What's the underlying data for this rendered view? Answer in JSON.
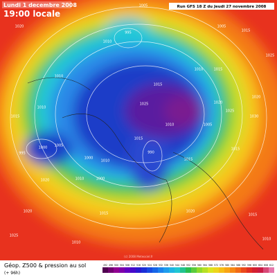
{
  "header": {
    "date": "Lundi 1 decembre 2008",
    "time": "19:00 locale",
    "run": "Run GFS 18 Z du Jeudi 27 novembre 2008"
  },
  "footer": {
    "title": "Géop. Z500 & pression au sol",
    "lead": "(+ 96h)",
    "credit": "(c) 2008 Meteociel.fr"
  },
  "colorbar": {
    "ticks": [
      492,
      496,
      500,
      504,
      508,
      512,
      516,
      520,
      524,
      528,
      532,
      536,
      540,
      544,
      548,
      552,
      556,
      560,
      564,
      568,
      572,
      576,
      580,
      584,
      588,
      592,
      596,
      600,
      604,
      608,
      612
    ]
  },
  "pressure_labels": [
    "1020",
    "1005",
    "1015",
    "1005",
    "995",
    "1010",
    "1025",
    "1010",
    "1015",
    "1010",
    "1010",
    "1015",
    "1025",
    "1020",
    "1025",
    "1030",
    "1015",
    "1000",
    "995",
    "1005",
    "1000",
    "1010",
    "990",
    "1015",
    "1010",
    "1000",
    "1020",
    "1015",
    "1020",
    "1025",
    "1015",
    "1010",
    "1010",
    "1015",
    "1005",
    "1015",
    "1020",
    "1020",
    "1010"
  ]
}
